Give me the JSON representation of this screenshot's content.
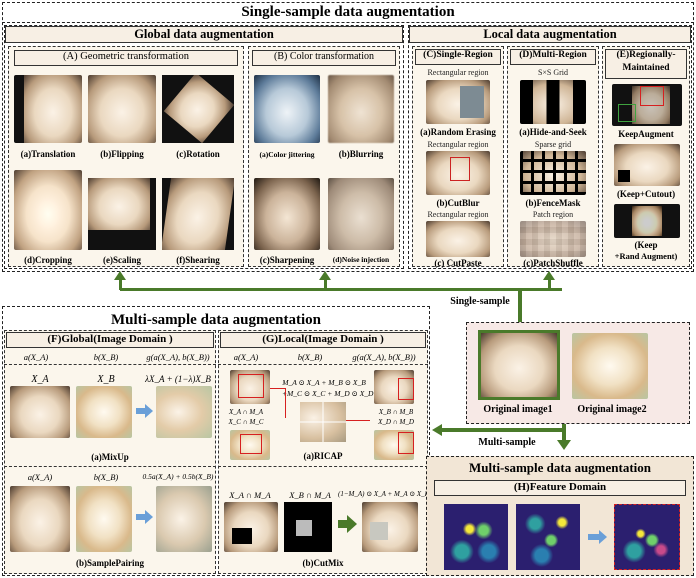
{
  "single_title": "Single-sample data augmentation",
  "global": {
    "title": "Global data augmentation",
    "geo": {
      "title": "(A) Geometric transformation",
      "items": [
        "(a)Translation",
        "(b)Flipping",
        "(c)Rotation",
        "(d)Cropping",
        "(e)Scaling",
        "(f)Shearing"
      ]
    },
    "color": {
      "title": "(B) Color transformation",
      "items": [
        "(a)Color jittering",
        "(b)Blurring",
        "(c)Sharpening",
        "(d)Noise injection"
      ]
    }
  },
  "local": {
    "title": "Local data augmentation",
    "single_region": {
      "title": "(C)Single-Region",
      "items": [
        {
          "caption": "Rectangular region",
          "label": "(a)Random Erasing"
        },
        {
          "caption": "Rectangular region",
          "label": "(b)CutBlur"
        },
        {
          "caption": "Rectangular region",
          "label": "(c) CutPaste"
        }
      ]
    },
    "multi_region": {
      "title": "(D)Multi-Region",
      "items": [
        {
          "caption": "S×S Grid",
          "label": "(a)Hide-and-Seek"
        },
        {
          "caption": "Sparse grid",
          "label": "(b)FenceMask"
        },
        {
          "caption": "Patch region",
          "label": "(c)PatchShuffle"
        }
      ]
    },
    "regionally": {
      "title_line1": "(E)Regionally-",
      "title_line2": "Maintained",
      "items": [
        "KeepAugment",
        "(Keep+Cutout)"
      ],
      "last_line1": "(Keep",
      "last_line2": "+Rand Augment)"
    }
  },
  "single_sample_label": "Single-sample",
  "multi_sample_label": "Multi-sample",
  "originals": {
    "img1": "Original image1",
    "img2": "Original image2"
  },
  "multi_title": "Multi-sample data augmentation",
  "f_panel": {
    "title": "(F)Global(Image Domain )",
    "h1": "a(X_A)",
    "h2": "b(X_B)",
    "h3": "g(a(X_A), b(X_B))",
    "xa": "X_A",
    "xb": "X_B",
    "mix_formula": "λX_A + (1−λ)X_B",
    "mixup": "(a)MixUp",
    "sp_h1": "a(X_A)",
    "sp_h2": "b(X_B)",
    "sp_formula": "0.5a(X_A) + 0.5b(X_B)",
    "samplepairing": "(b)SamplePairing"
  },
  "g_panel": {
    "title": "(G)Local(Image Domain )",
    "h1": "a(X_A)",
    "h2": "b(X_B)",
    "h3": "g(a(X_A), b(X_B))",
    "ricap_formula_1": "M_A ⊙ X_A + M_B ⊙ X_B",
    "ricap_formula_2": "+M_C ⊙ X_C + M_D ⊙ X_D",
    "xa_ma": "X_A ∩ M_A",
    "xc_mc": "X_C ∩ M_C",
    "xb_mb": "X_B ∩ M_B",
    "xd_md": "X_D ∩ M_D",
    "ricap": "(a)RICAP",
    "cm_h1": "X_A ∩ M_A",
    "cm_h2": "X_B ∩ M_A",
    "cm_formula": "(1−M_A) ⊙ X_A + M_A ⊙ X_B",
    "cutmix": "(b)CutMix"
  },
  "h_panel": {
    "title": "Multi-sample data augmentation",
    "sub": "(H)Feature Domain"
  },
  "colors": {
    "arrow": "#4a7a2a",
    "highlight_red": "#d62020",
    "highlight_green": "#3fa23f",
    "blue_arrow": "#6a9fd8"
  }
}
